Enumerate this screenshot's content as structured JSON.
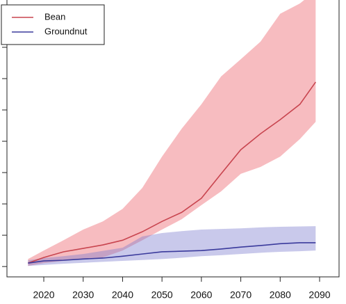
{
  "chart_data": {
    "type": "line",
    "x": [
      2016,
      2020,
      2025,
      2030,
      2035,
      2040,
      2045,
      2050,
      2055,
      2060,
      2065,
      2070,
      2075,
      2080,
      2085,
      2089
    ],
    "series": [
      {
        "name": "Bean",
        "color": "#c8454f",
        "band_color": "#f7bcc0",
        "values": [
          0.11,
          0.29,
          0.47,
          0.58,
          0.69,
          0.84,
          1.11,
          1.44,
          1.73,
          2.18,
          2.96,
          3.73,
          4.24,
          4.69,
          5.18,
          5.89
        ],
        "lower": [
          0.02,
          0.11,
          0.18,
          0.24,
          0.29,
          0.51,
          0.84,
          1.18,
          1.51,
          1.96,
          2.4,
          2.96,
          3.18,
          3.51,
          4.07,
          4.62
        ],
        "upper": [
          0.24,
          0.51,
          0.84,
          1.18,
          1.44,
          1.84,
          2.51,
          3.51,
          4.4,
          5.18,
          6.07,
          6.62,
          7.18,
          8.07,
          8.4,
          8.8
        ]
      },
      {
        "name": "Groundnut",
        "color": "#3a3a9c",
        "band_color": "rgba(120,120,205,0.4)",
        "values": [
          0.11,
          0.18,
          0.2,
          0.24,
          0.27,
          0.33,
          0.4,
          0.47,
          0.49,
          0.51,
          0.56,
          0.62,
          0.67,
          0.73,
          0.76,
          0.76
        ],
        "lower": [
          0.02,
          0.05,
          0.09,
          0.12,
          0.15,
          0.18,
          0.21,
          0.24,
          0.28,
          0.33,
          0.36,
          0.4,
          0.44,
          0.47,
          0.49,
          0.51
        ],
        "upper": [
          0.2,
          0.27,
          0.33,
          0.4,
          0.5,
          0.6,
          0.96,
          1.07,
          1.13,
          1.18,
          1.2,
          1.22,
          1.25,
          1.27,
          1.28,
          1.29
        ]
      }
    ],
    "xlim": [
      2010.65,
      2094.94
    ],
    "xticks": [
      2020,
      2030,
      2040,
      2050,
      2060,
      2070,
      2080,
      2090
    ],
    "ylim": [
      -0.33,
      8.51
    ],
    "yticks": [
      0,
      1,
      2,
      3,
      4,
      5,
      6,
      7,
      8
    ],
    "legend": "top-left"
  }
}
